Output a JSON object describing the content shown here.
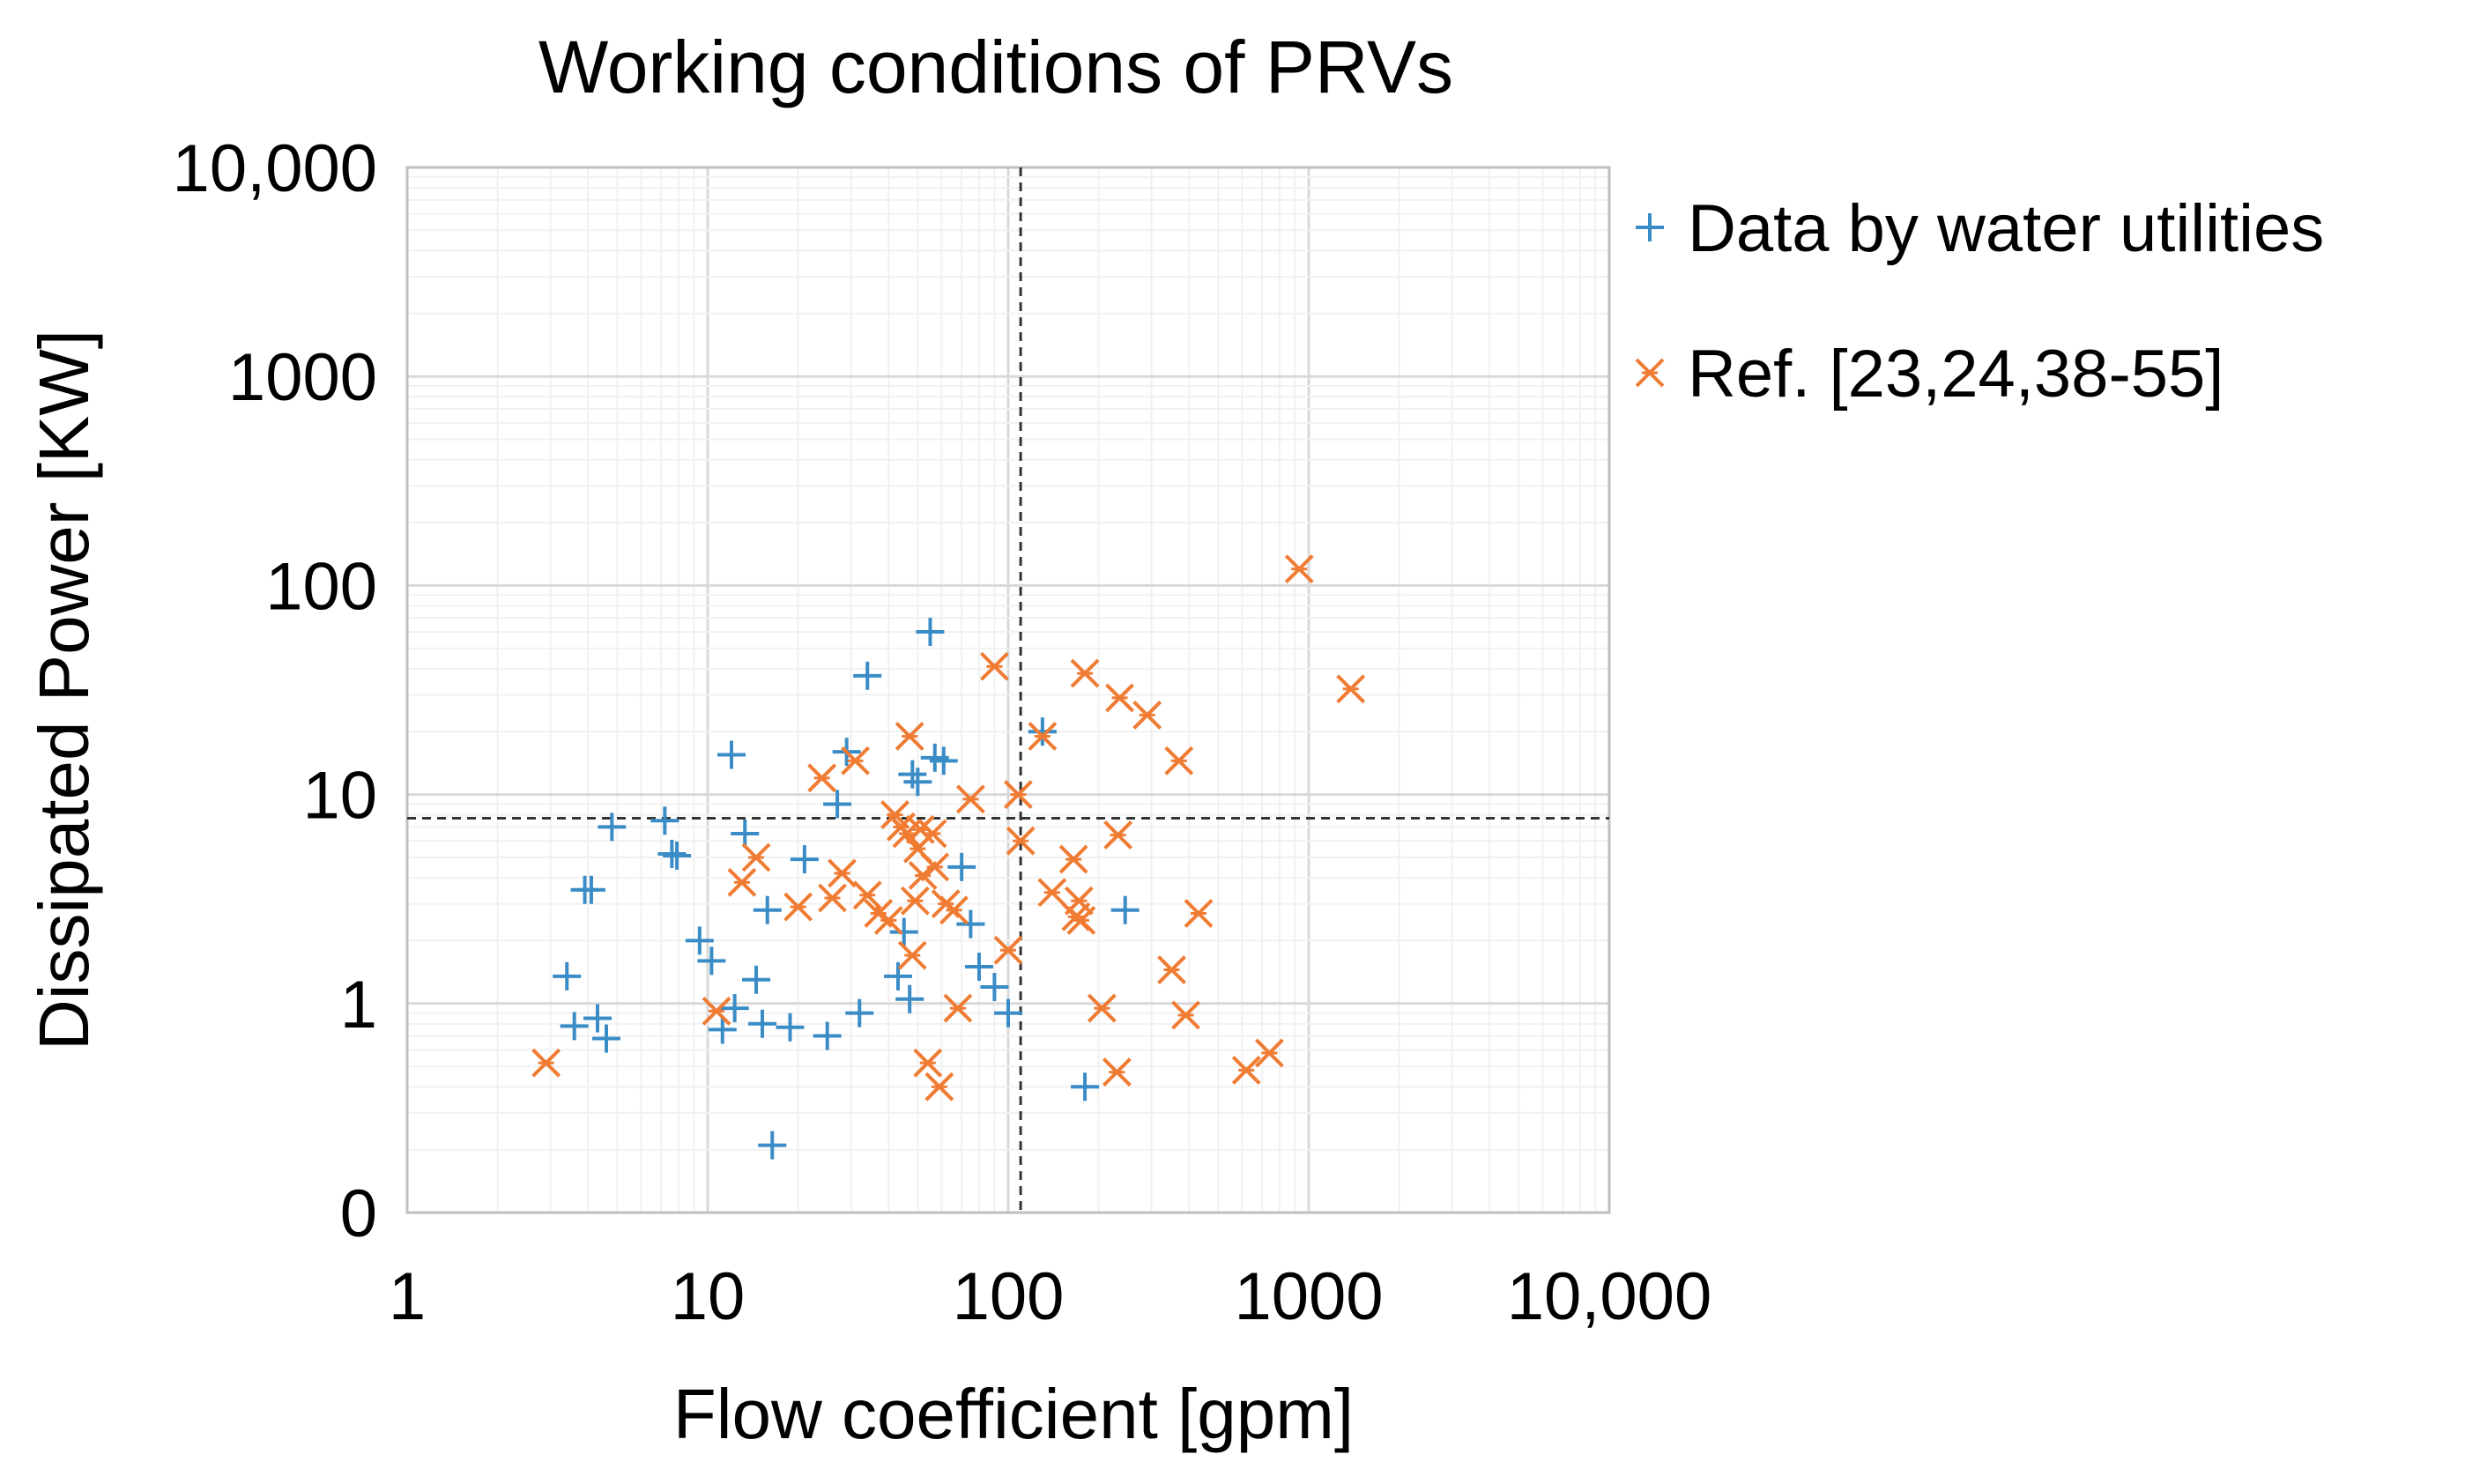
{
  "chart_data": {
    "type": "scatter",
    "title": "Working conditions of PRVs",
    "xlabel": "Flow coefficient [gpm]",
    "ylabel": "Dissipated Power [KW]",
    "x_scale": "log",
    "y_scale": "log",
    "xlim": [
      1,
      10000
    ],
    "ylim": [
      0.1,
      10000
    ],
    "x_ticks": [
      {
        "value": 1,
        "label": "1"
      },
      {
        "value": 10,
        "label": "10"
      },
      {
        "value": 100,
        "label": "100"
      },
      {
        "value": 1000,
        "label": "1000"
      },
      {
        "value": 10000,
        "label": "10,000"
      }
    ],
    "y_ticks": [
      {
        "value": 0.1,
        "label": "0"
      },
      {
        "value": 1,
        "label": "1"
      },
      {
        "value": 10,
        "label": "10"
      },
      {
        "value": 100,
        "label": "100"
      },
      {
        "value": 1000,
        "label": "1000"
      },
      {
        "value": 10000,
        "label": "10,000"
      }
    ],
    "grid": true,
    "legend_position": "right",
    "reference_lines": {
      "x": 110,
      "y": 7.7
    },
    "series": [
      {
        "name": "Data by water utilities",
        "marker": "plus",
        "color": "#3a8cc6",
        "points": [
          [
            3.4,
            1.35
          ],
          [
            3.6,
            0.78
          ],
          [
            3.9,
            3.5
          ],
          [
            4.1,
            3.5
          ],
          [
            4.3,
            0.85
          ],
          [
            4.6,
            0.68
          ],
          [
            4.8,
            7.0
          ],
          [
            7.2,
            7.5
          ],
          [
            7.6,
            5.2
          ],
          [
            7.9,
            5.1
          ],
          [
            9.4,
            2.0
          ],
          [
            10.3,
            1.6
          ],
          [
            11.2,
            0.75
          ],
          [
            12.0,
            15.5
          ],
          [
            12.3,
            0.95
          ],
          [
            13.3,
            6.5
          ],
          [
            14.5,
            1.3
          ],
          [
            15.2,
            0.8
          ],
          [
            15.8,
            2.8
          ],
          [
            16.4,
            0.21
          ],
          [
            18.8,
            0.77
          ],
          [
            21.0,
            4.9
          ],
          [
            25.0,
            0.7
          ],
          [
            27.0,
            9.0
          ],
          [
            29.0,
            16.0
          ],
          [
            32.0,
            0.9
          ],
          [
            34.0,
            37.0
          ],
          [
            43.0,
            1.35
          ],
          [
            45.0,
            2.2
          ],
          [
            47.0,
            1.05
          ],
          [
            48.0,
            12.5
          ],
          [
            50.0,
            11.5
          ],
          [
            55.0,
            60.0
          ],
          [
            57.0,
            15.0
          ],
          [
            61.0,
            14.5
          ],
          [
            70.0,
            4.5
          ],
          [
            75.0,
            2.4
          ],
          [
            80.0,
            1.5
          ],
          [
            90.0,
            1.2
          ],
          [
            100.0,
            0.9
          ],
          [
            130.0,
            20.0
          ],
          [
            180.0,
            0.4
          ],
          [
            245.0,
            2.8
          ]
        ]
      },
      {
        "name": "Ref. [23,24,38-55]",
        "marker": "star",
        "color": "#f07b32",
        "points": [
          [
            2.9,
            0.52
          ],
          [
            10.7,
            0.92
          ],
          [
            13.0,
            3.8
          ],
          [
            14.5,
            5.0
          ],
          [
            20.0,
            2.9
          ],
          [
            24.0,
            12.0
          ],
          [
            26.0,
            3.2
          ],
          [
            28.0,
            4.2
          ],
          [
            31.0,
            14.5
          ],
          [
            34.0,
            3.3
          ],
          [
            37.0,
            2.7
          ],
          [
            40.0,
            2.5
          ],
          [
            42.0,
            8.0
          ],
          [
            44.0,
            7.0
          ],
          [
            46.0,
            6.5
          ],
          [
            47.0,
            19.0
          ],
          [
            48.0,
            1.7
          ],
          [
            49.0,
            3.1
          ],
          [
            50.0,
            5.5
          ],
          [
            51.0,
            6.8
          ],
          [
            52.0,
            4.1
          ],
          [
            54.0,
            0.52
          ],
          [
            56.0,
            6.5
          ],
          [
            57.0,
            4.5
          ],
          [
            59.0,
            0.4
          ],
          [
            62.0,
            3.0
          ],
          [
            66.0,
            2.8
          ],
          [
            68.0,
            0.95
          ],
          [
            75.0,
            9.5
          ],
          [
            90.0,
            41.0
          ],
          [
            100.0,
            1.8
          ],
          [
            108.0,
            10.0
          ],
          [
            110.0,
            6.0
          ],
          [
            130.0,
            19.0
          ],
          [
            140.0,
            3.4
          ],
          [
            165.0,
            4.9
          ],
          [
            168.0,
            2.6
          ],
          [
            172.0,
            3.1
          ],
          [
            175.0,
            2.5
          ],
          [
            180.0,
            38.0
          ],
          [
            205.0,
            0.95
          ],
          [
            230.0,
            0.47
          ],
          [
            232.0,
            6.4
          ],
          [
            235.0,
            29.0
          ],
          [
            290.0,
            24.0
          ],
          [
            350.0,
            1.45
          ],
          [
            370.0,
            14.5
          ],
          [
            390.0,
            0.88
          ],
          [
            430.0,
            2.7
          ],
          [
            620.0,
            0.48
          ],
          [
            740.0,
            0.58
          ],
          [
            930.0,
            120.0
          ],
          [
            1380.0,
            32.0
          ]
        ]
      }
    ]
  }
}
